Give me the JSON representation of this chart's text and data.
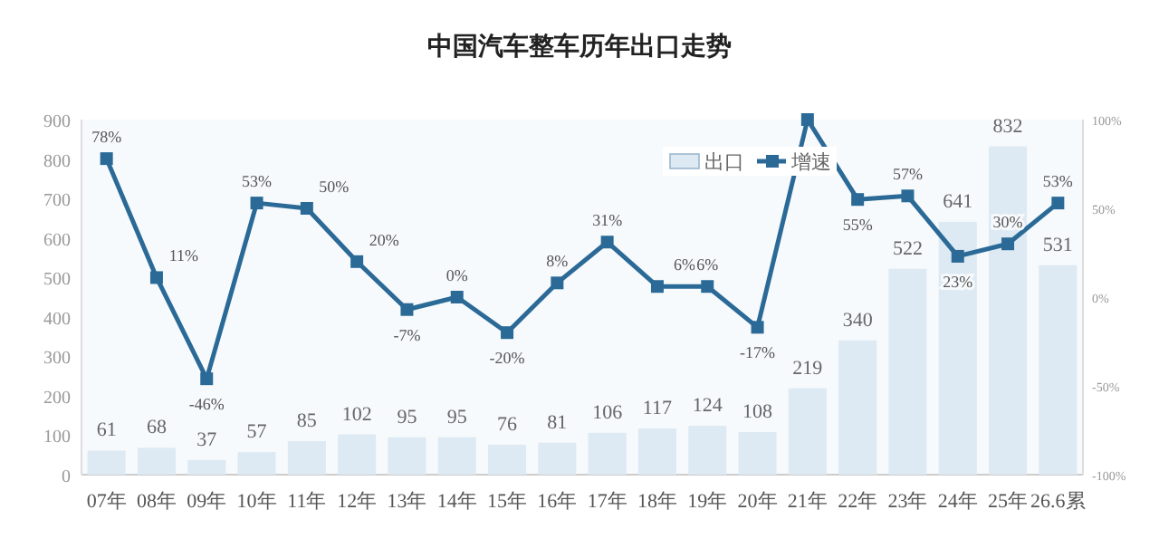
{
  "chart_data": {
    "type": "bar",
    "title": "中国汽车整车历年出口走势",
    "categories": [
      "07年",
      "08年",
      "09年",
      "10年",
      "11年",
      "12年",
      "13年",
      "14年",
      "15年",
      "16年",
      "17年",
      "18年",
      "19年",
      "20年",
      "21年",
      "22年",
      "23年",
      "24年",
      "25年",
      "26.6累"
    ],
    "series": [
      {
        "name": "出口",
        "color": "#dde9f3",
        "values": [
          61,
          68,
          37,
          57,
          85,
          102,
          95,
          95,
          76,
          81,
          106,
          117,
          124,
          108,
          219,
          340,
          522,
          641,
          832,
          531
        ],
        "value_labels": [
          "61",
          "68",
          "37",
          "57",
          "85",
          "102",
          "95",
          "95",
          "76",
          "81",
          "106",
          "117",
          "124",
          "108",
          "219",
          "340",
          "522",
          "641",
          "832",
          "531"
        ]
      },
      {
        "name": "增速",
        "type": "line",
        "axis": "y2",
        "color": "#2b6a97",
        "marker": "square",
        "values": [
          78,
          11,
          -46,
          53,
          50,
          20,
          -7,
          0,
          -20,
          8,
          31,
          6,
          6,
          -17,
          100,
          55,
          57,
          23,
          30,
          53
        ],
        "value_labels": [
          "78%",
          "11%",
          "-46%",
          "53%",
          "50%",
          "20%",
          "-7%",
          "0%",
          "-20%",
          "8%",
          "31%",
          "6%",
          "6%",
          "-17%",
          null,
          "55%",
          "57%",
          "23%",
          "30%",
          "53%"
        ]
      }
    ],
    "ylim": [
      0,
      900
    ],
    "yticks": [
      0,
      100,
      200,
      300,
      400,
      500,
      600,
      700,
      800,
      900
    ],
    "y2lim": [
      -100,
      100
    ],
    "y2ticks": [
      {
        "value": -100,
        "label": "-100%"
      },
      {
        "value": -50,
        "label": "-50%"
      },
      {
        "value": 0,
        "label": "0%"
      },
      {
        "value": 50,
        "label": "50%"
      },
      {
        "value": 100,
        "label": "100%"
      }
    ],
    "legend": "top right",
    "grid": false
  }
}
